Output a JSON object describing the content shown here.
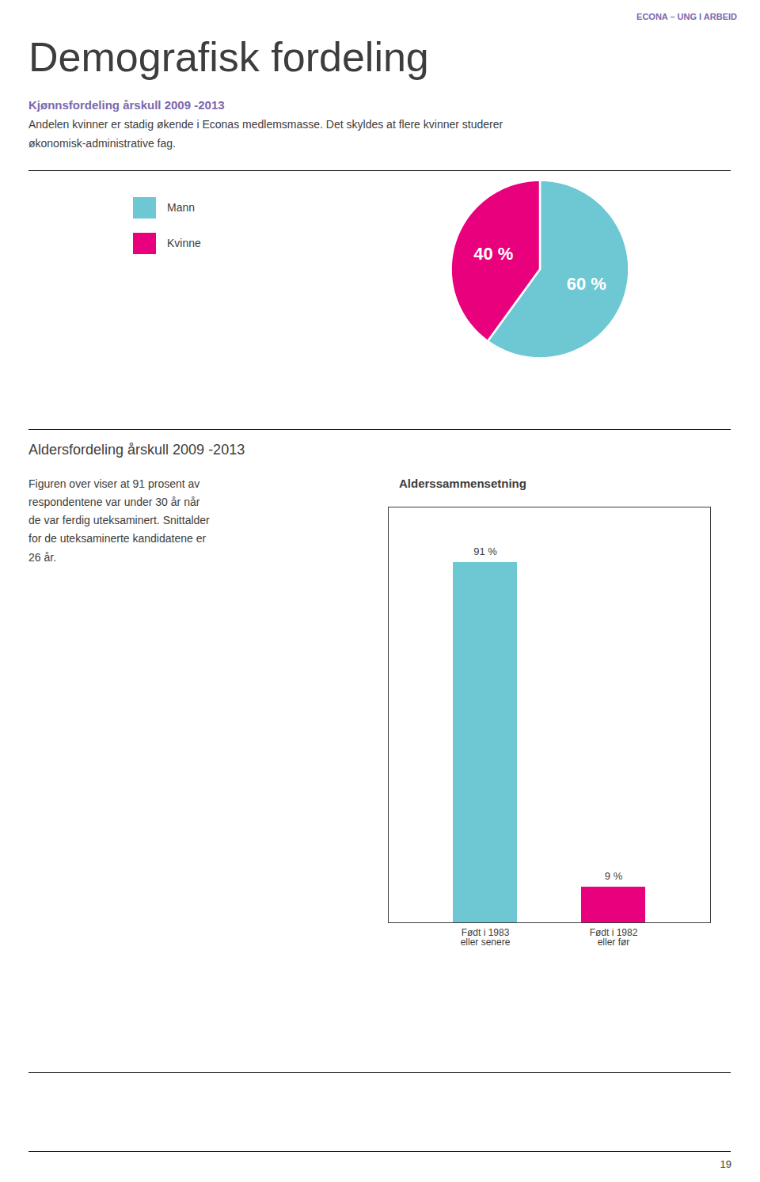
{
  "title": "Demografisk fordeling",
  "annotations": [
    "ECONA – UNG I ARBEID",
    "19"
  ],
  "chart_data": [
    {
      "type": "pie",
      "title": "Kjønnsfordeling årskull 2009 -2013",
      "annotations": [
        "Andelen kvinner er stadig økende i Econas medlemsmasse. Det skyldes at flere kvinner studerer",
        "økonomisk-administrative fag."
      ],
      "categories": [
        "Mann",
        "Kvinne"
      ],
      "values": [
        60,
        40
      ],
      "value_labels": [
        "60 %",
        "40 %"
      ],
      "colors": [
        "#6dc8d4",
        "#e8007d"
      ],
      "data_labels": true,
      "legend": "left"
    },
    {
      "type": "bar",
      "title": "Alderssammensetning",
      "annotations": [
        "Aldersfordeling årskull 2009 -2013",
        "Figuren over viser at 91 prosent av\nrespondentene var under 30 år når\nde var ferdig uteksaminert. Snittalder\nfor de uteksaminerte kandidatene er\n26 år."
      ],
      "categories": [
        "Født i 1983\neller senere",
        "Født i 1982\neller før"
      ],
      "values": [
        91,
        9
      ],
      "value_labels": [
        "91 %",
        "9 %"
      ],
      "colors": [
        "#6dc8d4",
        "#e8007d"
      ],
      "ylim": [
        0,
        105
      ],
      "tick_labels": "x",
      "data_labels": true,
      "grid": false
    }
  ]
}
